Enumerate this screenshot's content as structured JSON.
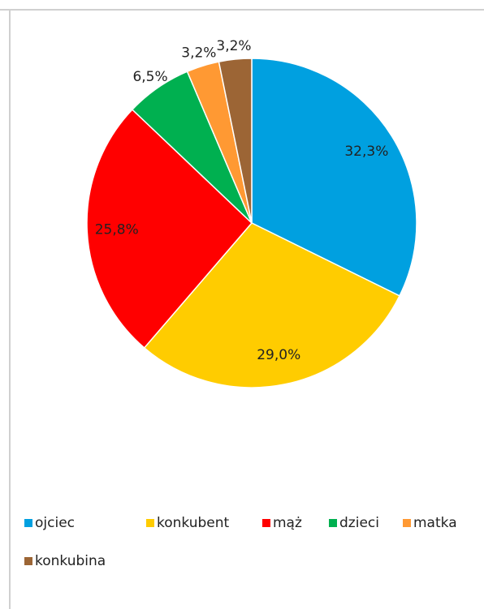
{
  "chart_data": {
    "type": "pie",
    "categories": [
      "ojciec",
      "konkubent",
      "mąż",
      "dzieci",
      "matka",
      "konkubina"
    ],
    "values": [
      32.3,
      29.0,
      25.8,
      6.5,
      3.2,
      3.2
    ],
    "value_labels": [
      "32,3%",
      "29,0%",
      "25,8%",
      "6,5%",
      "3,2%",
      "3,2%"
    ],
    "colors": [
      "#00a0e0",
      "#ffcc00",
      "#ff0000",
      "#00b050",
      "#ff9933",
      "#9c6535"
    ],
    "legend": "bottom"
  }
}
